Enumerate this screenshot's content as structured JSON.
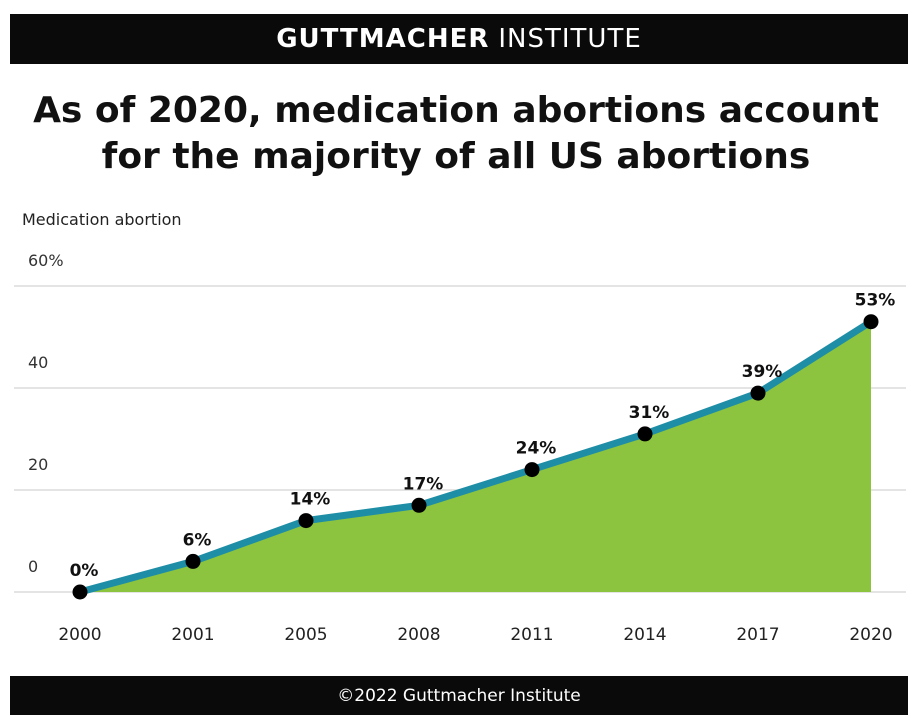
{
  "header": {
    "org_strong": "GUTTMACHER",
    "org_light": "INSTITUTE"
  },
  "title": {
    "line1": "As of 2020, medication abortions account",
    "line2": "for the majority of all US abortions"
  },
  "footer": {
    "text": "©2022 Guttmacher Institute"
  },
  "colors": {
    "fill": "#8cc440",
    "line": "#1e8ea6",
    "point": "#000000",
    "grid": "#dcdcdc",
    "bar": "#0a0a0a"
  },
  "chart_data": {
    "type": "area",
    "title": "As of 2020, medication abortions account for the majority of all US abortions",
    "ylabel": "Medication abortion",
    "categories": [
      "2000",
      "2001",
      "2005",
      "2008",
      "2011",
      "2014",
      "2017",
      "2020"
    ],
    "values": [
      0,
      6,
      14,
      17,
      24,
      31,
      39,
      53
    ],
    "data_labels": [
      "0%",
      "6%",
      "14%",
      "17%",
      "24%",
      "31%",
      "39%",
      "53%"
    ],
    "yticks": [
      0,
      20,
      40,
      60
    ],
    "ytick_labels": [
      "0",
      "20",
      "40",
      "60%"
    ],
    "ylim": [
      0,
      60
    ],
    "grid": true,
    "legend": "none"
  }
}
